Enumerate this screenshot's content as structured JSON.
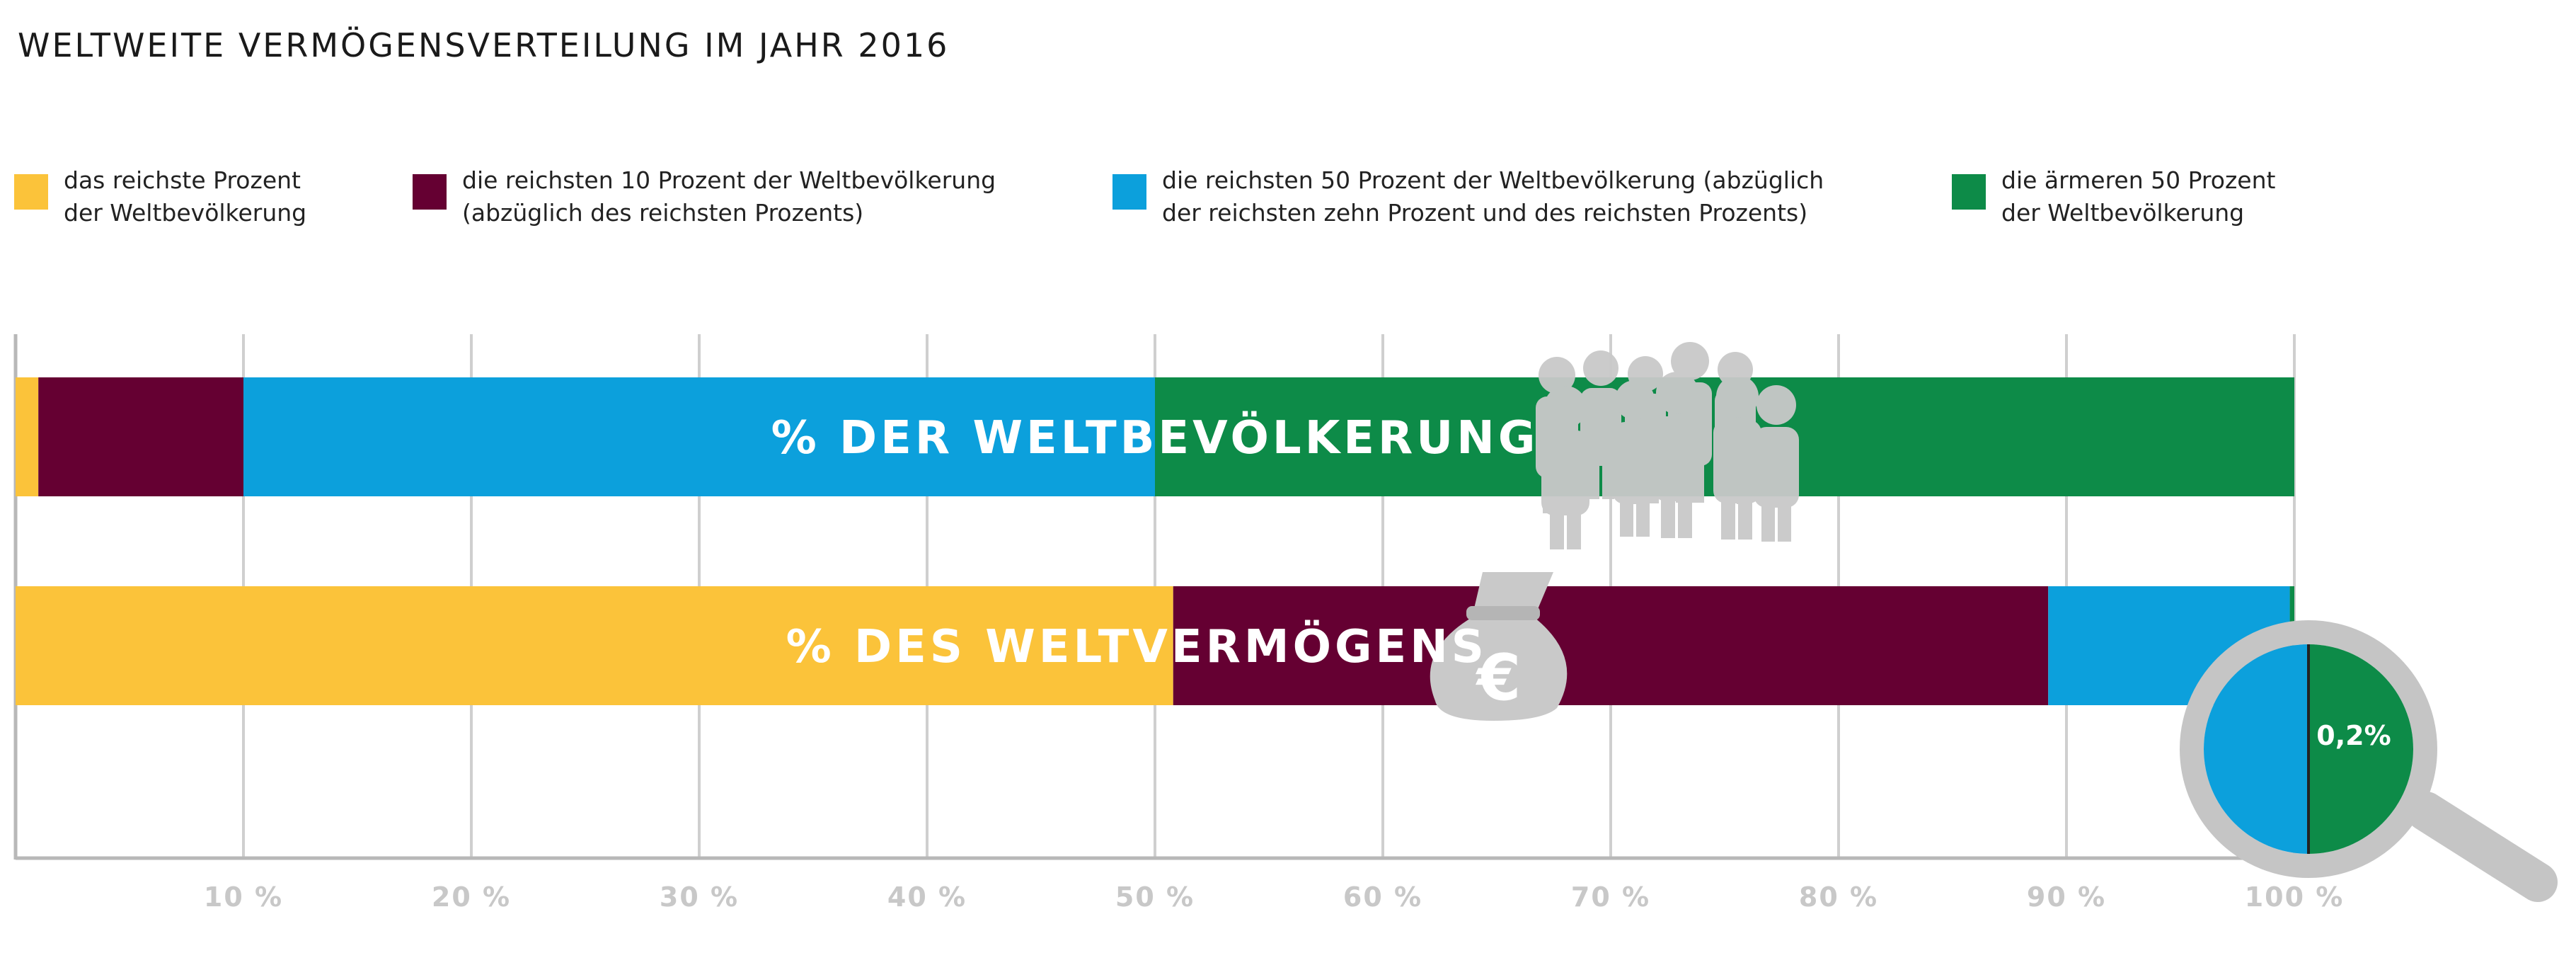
{
  "chart_data": {
    "type": "bar",
    "orientation": "horizontal-stacked",
    "title": "WELTWEITE VERMÖGENSVERTEILUNG IM JAHR 2016",
    "xlim": [
      0,
      100
    ],
    "x_ticks": [
      "10 %",
      "20 %",
      "30 %",
      "40 %",
      "50 %",
      "60 %",
      "70 %",
      "80 %",
      "90 %",
      "100 %"
    ],
    "legend": [
      {
        "key": "top1",
        "color": "#fbc33a",
        "lines": [
          "das reichste Prozent",
          "der Weltbevölkerung"
        ]
      },
      {
        "key": "top10",
        "color": "#650032",
        "lines": [
          "die reichsten 10 Prozent der Weltbevölkerung",
          "(abzüglich des reichsten Prozents)"
        ]
      },
      {
        "key": "top50",
        "color": "#0ca0dc",
        "lines": [
          "die reichsten 50 Prozent der Weltbevölkerung (abzüglich",
          "der reichsten zehn Prozent und des reichsten Prozents)"
        ]
      },
      {
        "key": "bottom50",
        "color": "#0d8b48",
        "lines": [
          "die ärmeren 50 Prozent",
          "der Weltbevölkerung"
        ]
      }
    ],
    "series": [
      {
        "name": "% DER WELTBEVÖLKERUNG",
        "segments": [
          1,
          9,
          40,
          50
        ]
      },
      {
        "name": "% DES WELTVERMÖGENS",
        "segments": [
          50.8,
          38.4,
          10.6,
          0.2
        ]
      }
    ],
    "annotation": {
      "label": "0,2%",
      "left_color": "#0ca0dc",
      "right_color": "#0d8b48"
    }
  }
}
